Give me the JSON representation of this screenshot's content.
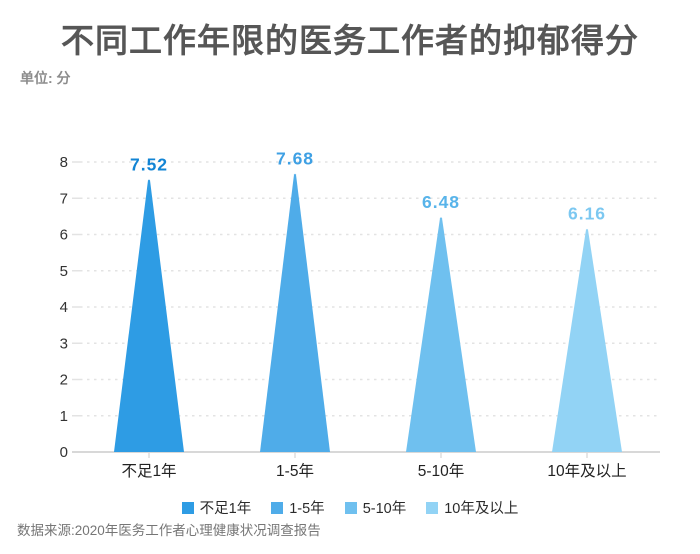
{
  "header": {
    "title": "不同工作年限的医务工作者的抑郁得分",
    "unit_label": "单位: 分"
  },
  "chart_data": {
    "type": "bar",
    "bar_shape": "triangle-cone",
    "title": "不同工作年限的医务工作者的抑郁得分",
    "unit": "单位: 分",
    "categories": [
      "不足1年",
      "1-5年",
      "5-10年",
      "10年及以上"
    ],
    "values": [
      7.52,
      7.68,
      6.48,
      6.16
    ],
    "value_labels": [
      "7.52",
      "7.68",
      "6.48",
      "6.16"
    ],
    "bar_colors": [
      "#2E9CE4",
      "#4FACE9",
      "#6FC0EF",
      "#92D3F5"
    ],
    "value_label_colors": [
      "#1284D4",
      "#3EA0E4",
      "#58B4EA",
      "#7CC8F1"
    ],
    "ylim": [
      0,
      8
    ],
    "yticks": [
      0,
      1,
      2,
      3,
      4,
      5,
      6,
      7,
      8
    ],
    "grid": "horizontal-dashed",
    "legend_position": "bottom"
  },
  "legend": {
    "items": [
      {
        "label": "不足1年",
        "color": "#2E9CE4"
      },
      {
        "label": "1-5年",
        "color": "#4FACE9"
      },
      {
        "label": "5-10年",
        "color": "#6FC0EF"
      },
      {
        "label": "10年及以上",
        "color": "#92D3F5"
      }
    ]
  },
  "footer": {
    "source": "数据来源:2020年医务工作者心理健康状况调查报告"
  },
  "colors": {
    "title_text": "#565656",
    "unit_text": "#8c8c8c",
    "axis_text": "#333333",
    "category_text": "#222222",
    "gridline": "#e3e3e3",
    "baseline": "#d8d8d8",
    "tick": "#cccccc",
    "source_text": "#767676",
    "background": "#ffffff"
  }
}
